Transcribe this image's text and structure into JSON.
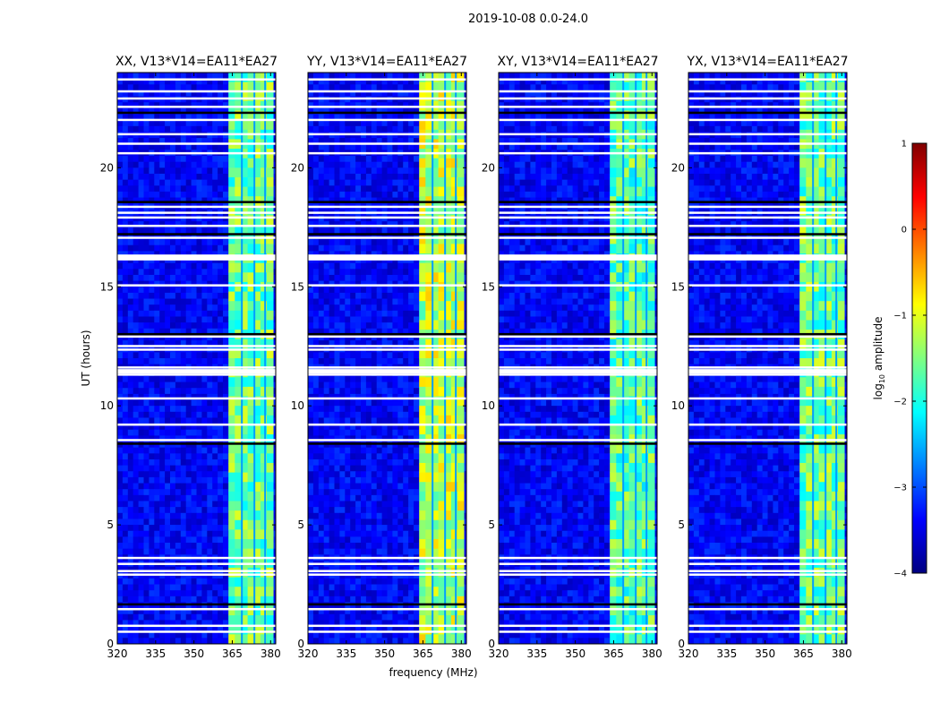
{
  "figure": {
    "suptitle": "2019-10-08 0.0-24.0",
    "ylabel": "UT (hours)",
    "xlabel": "frequency (MHz)"
  },
  "chart_data": {
    "type": "heatmap",
    "title": "2019-10-08 0.0-24.0",
    "xlabel": "frequency (MHz)",
    "ylabel": "UT (hours)",
    "xlim": [
      320,
      382
    ],
    "ylim": [
      0,
      24
    ],
    "xticks": [
      "320",
      "335",
      "350",
      "365",
      "380"
    ],
    "xtick_values": [
      320,
      335,
      350,
      365,
      380
    ],
    "yticks": [
      "0",
      "5",
      "10",
      "15",
      "20"
    ],
    "ytick_values": [
      0,
      5,
      10,
      15,
      20
    ],
    "panels": [
      {
        "title": "XX, V13*V14=EA11*EA27",
        "bright_band_level": -1.6
      },
      {
        "title": "YY, V13*V14=EA11*EA27",
        "bright_band_level": -1.2
      },
      {
        "title": "XY, V13*V14=EA11*EA27",
        "bright_band_level": -1.7
      },
      {
        "title": "YX, V13*V14=EA11*EA27",
        "bright_band_level": -1.6
      }
    ],
    "background_level": -3.4,
    "bright_band_mhz": [
      363.5,
      382
    ],
    "flagged_rows_ut": [
      0.5,
      0.75,
      1.45,
      1.65,
      2.9,
      3.05,
      3.35,
      3.6,
      8.4,
      8.55,
      9.2,
      10.3,
      11.3,
      11.45,
      11.6,
      12.35,
      12.5,
      12.9,
      13.0,
      15.05,
      16.2,
      16.3,
      17.05,
      17.2,
      17.55,
      17.9,
      18.1,
      18.35,
      18.55,
      20.6,
      21.0,
      21.4,
      22.0,
      22.3,
      22.55,
      22.9,
      23.2,
      23.7
    ],
    "colorbar": {
      "label": "log",
      "label_sub": "10",
      "label_suffix": " amplitude",
      "range": [
        -4,
        1
      ],
      "ticks": [
        1,
        0,
        -1,
        -2,
        -3,
        -4
      ],
      "tick_labels": [
        "1",
        "0",
        "−1",
        "−2",
        "−3",
        "−4"
      ],
      "colormap": [
        "#000080",
        "#0000ff",
        "#0080ff",
        "#00ffff",
        "#80ff80",
        "#ffff00",
        "#ff8000",
        "#ff0000",
        "#800000"
      ]
    }
  }
}
